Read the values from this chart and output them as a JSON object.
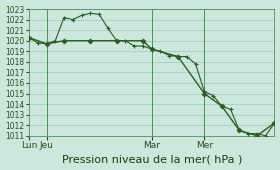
{
  "background_color": "#cce8dc",
  "grid_color": "#99ccbb",
  "line_color": "#2d5a27",
  "ylim": [
    1011,
    1023
  ],
  "yticks": [
    1011,
    1012,
    1013,
    1014,
    1015,
    1016,
    1017,
    1018,
    1019,
    1020,
    1021,
    1022,
    1023
  ],
  "xlabel": "Pression niveau de la mer( hPa )",
  "xlabel_fontsize": 8,
  "xtick_labels": [
    "Lun",
    "Jeu",
    "Mar",
    "Mer"
  ],
  "xtick_positions": [
    0,
    2,
    14,
    20
  ],
  "vline_positions": [
    2,
    14,
    20
  ],
  "xmin": 0,
  "xmax": 28,
  "series1_x": [
    0,
    1,
    2,
    3,
    4,
    5,
    6,
    7,
    8,
    9,
    10,
    11,
    12,
    13,
    14,
    15,
    16,
    17,
    18,
    19,
    20,
    21,
    22,
    23,
    24,
    25,
    26,
    27,
    28
  ],
  "series1_y": [
    1020.3,
    1019.8,
    1019.7,
    1020.0,
    1022.2,
    1022.0,
    1022.4,
    1022.6,
    1022.5,
    1021.2,
    1020.0,
    1020.0,
    1019.5,
    1019.5,
    1019.2,
    1019.0,
    1018.6,
    1018.5,
    1018.5,
    1017.8,
    1015.2,
    1014.8,
    1013.8,
    1013.5,
    1011.5,
    1011.2,
    1011.2,
    1011.0,
    1012.2
  ],
  "series2_x": [
    0,
    2,
    4,
    7,
    10,
    13,
    14,
    17,
    20,
    22,
    24,
    26,
    28
  ],
  "series2_y": [
    1020.3,
    1019.7,
    1020.0,
    1020.0,
    1020.0,
    1020.0,
    1019.2,
    1018.5,
    1015.0,
    1013.8,
    1011.5,
    1011.0,
    1012.2
  ]
}
